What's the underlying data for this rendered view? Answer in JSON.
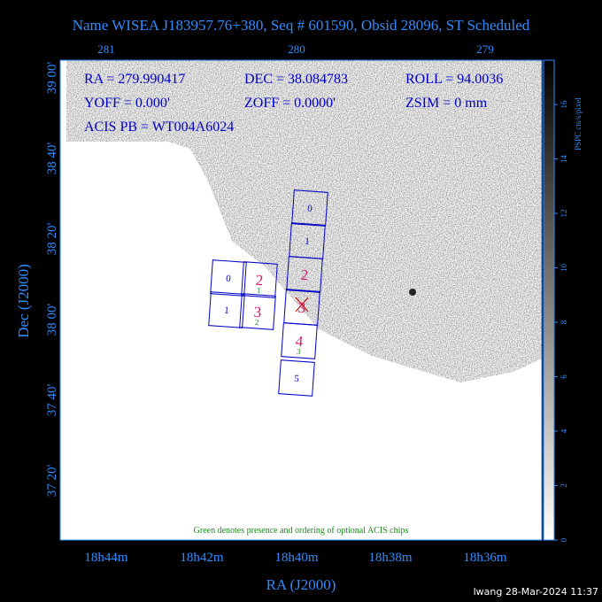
{
  "title": "Name WISEA J183957.76+380, Seq # 601590, Obsid 28096, ST Scheduled",
  "info": [
    "RA = 279.990417",
    "DEC = 38.084783",
    "ROLL = 94.0036",
    "YOFF =    0.000'",
    "ZOFF =   0.0000'",
    "ZSIM = 0 mm",
    "ACIS PB = WT004A6024"
  ],
  "top_axis_labels": [
    "281",
    "280",
    "279"
  ],
  "bottom_axis_labels": [
    "18h44m",
    "18h42m",
    "18h40m",
    "18h38m",
    "18h36m"
  ],
  "left_axis_labels": [
    "39 00'",
    "38 40'",
    "38 20'",
    "38 00'",
    "37 40'",
    "37 20'"
  ],
  "x_axis_label": "RA (J2000)",
  "y_axis_label": "Dec (J2000)",
  "colorbar": {
    "label": "PSPC cts/s/pixel",
    "ticks": [
      0,
      2,
      4,
      6,
      8,
      10,
      12,
      14,
      16
    ]
  },
  "i_array": [
    {
      "label": "0"
    },
    {
      "label": "1"
    },
    {
      "label": "2",
      "optional_order": "1"
    },
    {
      "label": "3",
      "optional_order": "2"
    }
  ],
  "s_array": [
    {
      "label": "0"
    },
    {
      "label": "1"
    },
    {
      "label": "2"
    },
    {
      "label": "3"
    },
    {
      "label": "4",
      "optional_order": "3"
    },
    {
      "label": "5"
    }
  ],
  "note": "Green denotes presence and ordering of optional ACIS chips",
  "footer": "lwang 28-Mar-2024 11:37"
}
